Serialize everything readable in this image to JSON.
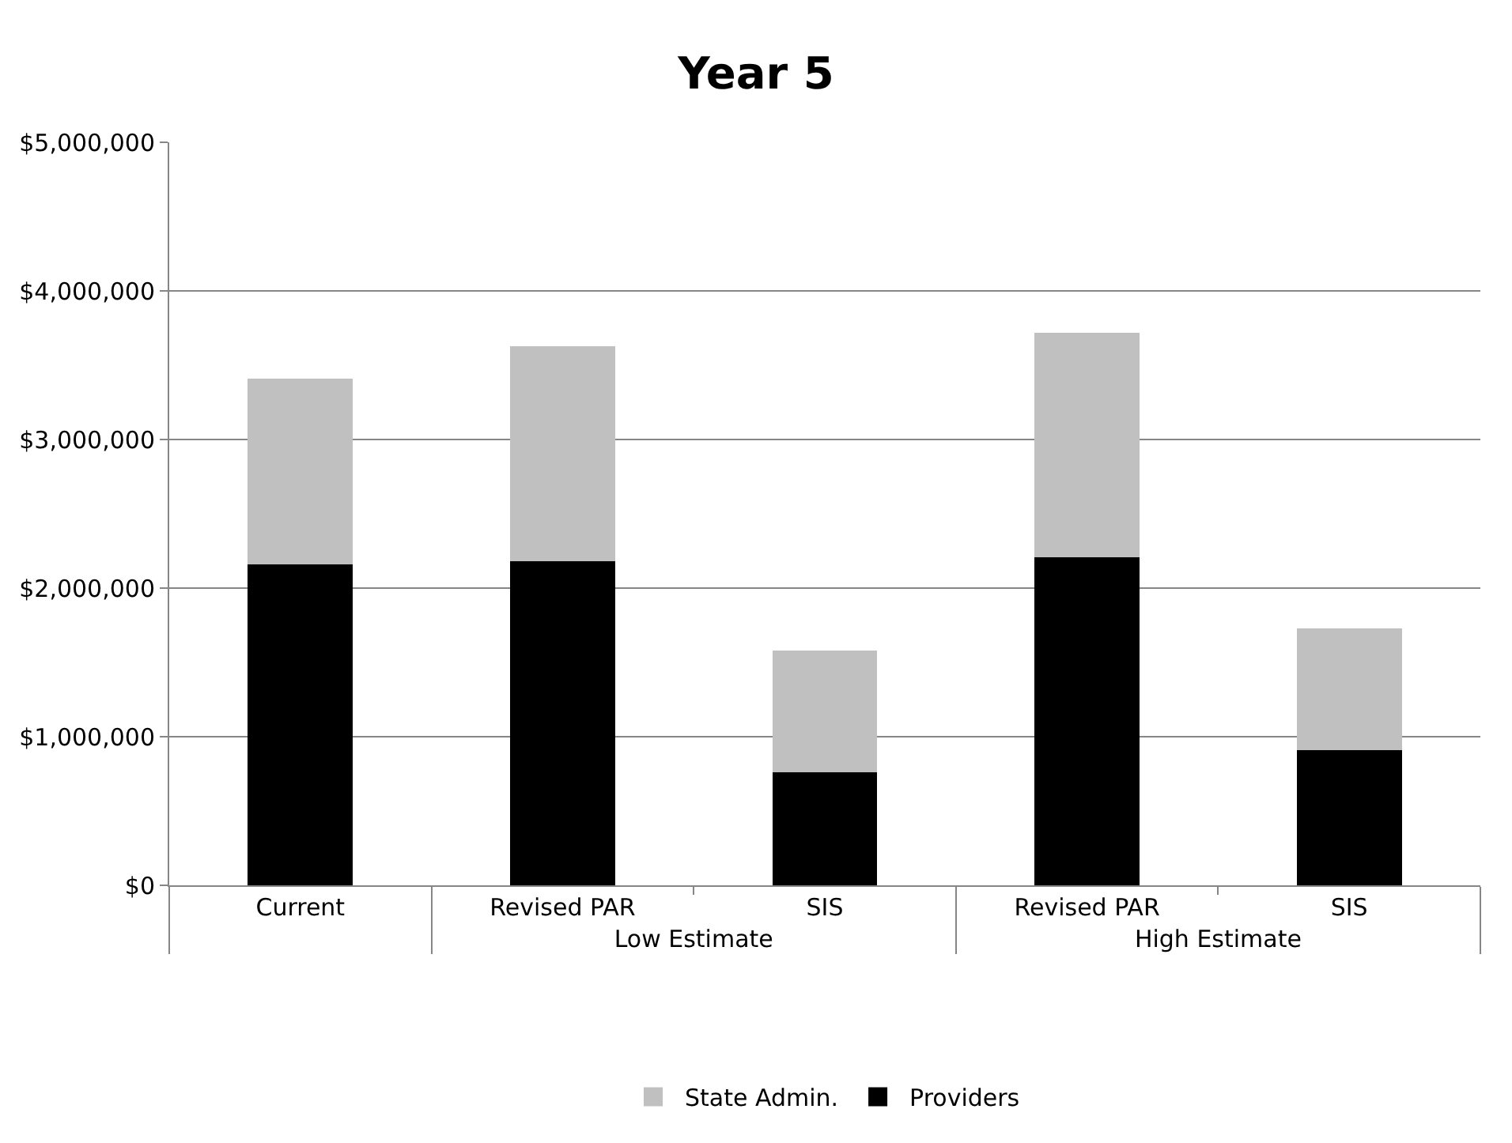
{
  "chart_data": {
    "type": "bar",
    "title": "Year 5",
    "stacked": true,
    "categories": [
      "Current",
      "Revised PAR",
      "SIS",
      "Revised PAR",
      "SIS"
    ],
    "annotations": [
      "Low Estimate",
      "High Estimate"
    ],
    "series": [
      {
        "name": "Providers",
        "color": "#000000",
        "values": [
          2160000,
          2180000,
          760000,
          2210000,
          910000
        ]
      },
      {
        "name": "State Admin.",
        "color": "#c0c0c0",
        "values": [
          1250000,
          1450000,
          820000,
          1510000,
          820000
        ]
      }
    ],
    "ylim": [
      0,
      5000000
    ],
    "yticks": [
      {
        "value": 0,
        "label": "$0"
      },
      {
        "value": 1000000,
        "label": "$1,000,000"
      },
      {
        "value": 2000000,
        "label": "$2,000,000"
      },
      {
        "value": 3000000,
        "label": "$3,000,000"
      },
      {
        "value": 4000000,
        "label": "$4,000,000"
      },
      {
        "value": 5000000,
        "label": "$5,000,000"
      }
    ],
    "grid": "y",
    "legend": "bottom"
  }
}
